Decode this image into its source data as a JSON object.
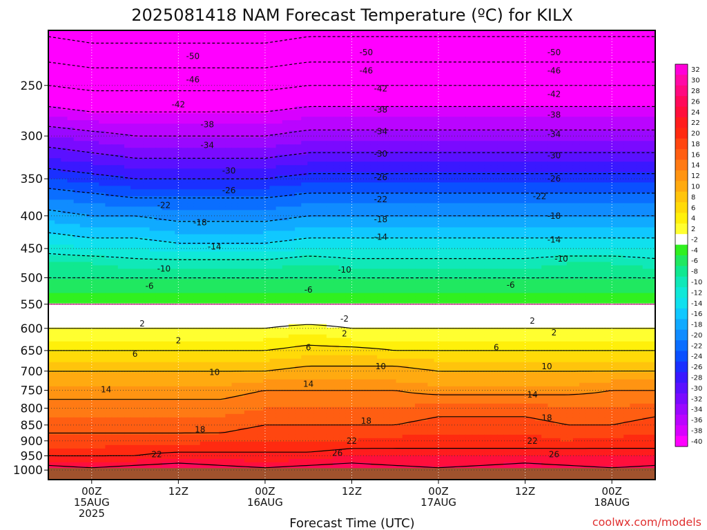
{
  "chart_data": {
    "type": "heatmap",
    "title": "2025081418 NAM Forecast Temperature (ºC) for KILX",
    "xlabel": "Forecast Time (UTC)",
    "credit": "coolwx.com/models",
    "y_axis": {
      "quantity": "pressure (hPa)",
      "reversed": true,
      "log_scale": true,
      "ticks": [
        250,
        300,
        350,
        400,
        450,
        500,
        550,
        600,
        650,
        700,
        750,
        800,
        850,
        900,
        950,
        1000
      ],
      "range": [
        1035,
        205
      ]
    },
    "x_axis": {
      "range_hours_after_2025081418": [
        0,
        84
      ],
      "ticks": [
        {
          "hour": 6,
          "lines": [
            "00Z",
            "15AUG",
            "2025"
          ]
        },
        {
          "hour": 18,
          "lines": [
            "12Z"
          ]
        },
        {
          "hour": 30,
          "lines": [
            "00Z",
            "16AUG"
          ]
        },
        {
          "hour": 42,
          "lines": [
            "12Z"
          ]
        },
        {
          "hour": 54,
          "lines": [
            "00Z",
            "17AUG"
          ]
        },
        {
          "hour": 66,
          "lines": [
            "12Z"
          ]
        },
        {
          "hour": 78,
          "lines": [
            "00Z",
            "18AUG"
          ]
        }
      ]
    },
    "grid": true,
    "ground_level_hPa": 993,
    "colorbar": {
      "location": "right",
      "levels": [
        32,
        30,
        28,
        26,
        24,
        22,
        20,
        18,
        16,
        14,
        12,
        10,
        8,
        6,
        4,
        2,
        -2,
        -4,
        -6,
        -8,
        -10,
        -12,
        -14,
        -16,
        -18,
        -20,
        -22,
        -24,
        -26,
        -28,
        -30,
        -32,
        -34,
        -36,
        -38,
        -40
      ],
      "colors": [
        "#ff00d8",
        "#ff0aa6",
        "#ff0a80",
        "#ff0a5a",
        "#ff0f3c",
        "#ff1d1d",
        "#ff2a10",
        "#ff4610",
        "#ff5e12",
        "#ff7a14",
        "#ff9412",
        "#ffaa10",
        "#ffc40c",
        "#ffda08",
        "#fff00a",
        "#ffff30",
        "#ffffff",
        "#30f020",
        "#20e860",
        "#10e890",
        "#10e8b8",
        "#10e8d8",
        "#10e0ee",
        "#10c8ff",
        "#10aaff",
        "#108cff",
        "#0a6eff",
        "#0a50ff",
        "#1a30ff",
        "#3a18ff",
        "#5a10ff",
        "#7a0aff",
        "#9a08ff",
        "#ba04ff",
        "#d800ff",
        "#ff00ff"
      ]
    },
    "profile_hPa": [
      1000,
      975,
      950,
      925,
      900,
      875,
      850,
      825,
      800,
      775,
      750,
      725,
      700,
      675,
      650,
      625,
      600,
      575,
      550,
      525,
      500,
      475,
      450,
      425,
      400,
      375,
      350,
      325,
      300,
      275,
      250,
      225,
      200
    ],
    "columns_hour": [
      0,
      6,
      12,
      18,
      24,
      30,
      36,
      42,
      48,
      54,
      60,
      66,
      72,
      78,
      84
    ],
    "temperature_C": [
      [
        28,
        27,
        28,
        29,
        28,
        27,
        28,
        29,
        28,
        27,
        28,
        29,
        28,
        27,
        28
      ],
      [
        25,
        24,
        25,
        26,
        25,
        24,
        25,
        26,
        25,
        24,
        25,
        26,
        25,
        24,
        25
      ],
      [
        22,
        22,
        22,
        23,
        23,
        23,
        23,
        24,
        24,
        24,
        24,
        24,
        24,
        24,
        24
      ],
      [
        20,
        20,
        21,
        21,
        21,
        21,
        21,
        22,
        22,
        22,
        22,
        22,
        22,
        22,
        22
      ],
      [
        19,
        19,
        19,
        19,
        20,
        20,
        20,
        20,
        21,
        21,
        21,
        21,
        20,
        21,
        21
      ],
      [
        18,
        18,
        18,
        18,
        18,
        19,
        19,
        19,
        19,
        20,
        20,
        20,
        19,
        19,
        20
      ],
      [
        17,
        17,
        17,
        17,
        17,
        18,
        18,
        18,
        18,
        19,
        19,
        19,
        18,
        18,
        19
      ],
      [
        16,
        16,
        16,
        16,
        16,
        17,
        17,
        17,
        17,
        18,
        18,
        18,
        17,
        17,
        18
      ],
      [
        15,
        15,
        15,
        15,
        15,
        16,
        16,
        16,
        16,
        17,
        17,
        17,
        16,
        16,
        17
      ],
      [
        14,
        14,
        14,
        14,
        14,
        15,
        15,
        15,
        15,
        15,
        15,
        15,
        15,
        15,
        15
      ],
      [
        13,
        13,
        13,
        13,
        13,
        14,
        14,
        14,
        14,
        13,
        13,
        13,
        13,
        14,
        14
      ],
      [
        11,
        11,
        11,
        11,
        11,
        12,
        12,
        12,
        12,
        11,
        11,
        11,
        11,
        12,
        12
      ],
      [
        10,
        10,
        10,
        10,
        10,
        10,
        11,
        11,
        11,
        10,
        10,
        10,
        10,
        10,
        10
      ],
      [
        8,
        8,
        8,
        8,
        8,
        8,
        9,
        9,
        9,
        8,
        8,
        8,
        8,
        8,
        8
      ],
      [
        6,
        6,
        6,
        6,
        6,
        6,
        7,
        7,
        6,
        6,
        6,
        6,
        6,
        6,
        6
      ],
      [
        4,
        4,
        4,
        4,
        4,
        4,
        5,
        4,
        4,
        4,
        4,
        4,
        4,
        4,
        4
      ],
      [
        2,
        2,
        2,
        2,
        2,
        2,
        3,
        2,
        2,
        2,
        2,
        2,
        2,
        2,
        2
      ],
      [
        0,
        0,
        0,
        0,
        0,
        0,
        0,
        0,
        0,
        0,
        0,
        0,
        0,
        0,
        0
      ],
      [
        -2,
        -2,
        -2,
        -2,
        -2,
        -2,
        -2,
        -2,
        -2,
        -2,
        -2,
        -2,
        -2,
        -2,
        -2
      ],
      [
        -4,
        -4,
        -4,
        -4,
        -4,
        -4,
        -4,
        -4,
        -4,
        -4,
        -4,
        -4,
        -4,
        -4,
        -4
      ],
      [
        -6,
        -6,
        -6,
        -6,
        -6,
        -6,
        -6,
        -6,
        -6,
        -6,
        -6,
        -6,
        -6,
        -6,
        -6
      ],
      [
        -8,
        -8,
        -9,
        -9,
        -9,
        -9,
        -8,
        -9,
        -9,
        -9,
        -9,
        -9,
        -8,
        -8,
        -9
      ],
      [
        -11,
        -12,
        -12,
        -13,
        -13,
        -13,
        -12,
        -12,
        -12,
        -12,
        -12,
        -12,
        -12,
        -12,
        -12
      ],
      [
        -14,
        -15,
        -15,
        -16,
        -16,
        -16,
        -15,
        -15,
        -15,
        -15,
        -15,
        -15,
        -15,
        -15,
        -15
      ],
      [
        -17,
        -18,
        -18,
        -19,
        -19,
        -19,
        -18,
        -18,
        -18,
        -18,
        -18,
        -18,
        -18,
        -18,
        -18
      ],
      [
        -20,
        -21,
        -22,
        -22,
        -22,
        -22,
        -21,
        -21,
        -21,
        -21,
        -21,
        -21,
        -21,
        -21,
        -21
      ],
      [
        -24,
        -25,
        -26,
        -26,
        -26,
        -26,
        -25,
        -25,
        -25,
        -25,
        -25,
        -25,
        -25,
        -25,
        -25
      ],
      [
        -28,
        -29,
        -30,
        -30,
        -30,
        -30,
        -29,
        -29,
        -29,
        -29,
        -29,
        -29,
        -29,
        -29,
        -29
      ],
      [
        -32,
        -33,
        -34,
        -34,
        -34,
        -34,
        -33,
        -33,
        -33,
        -33,
        -33,
        -33,
        -33,
        -33,
        -33
      ],
      [
        -37,
        -38,
        -38,
        -38,
        -38,
        -38,
        -37,
        -37,
        -37,
        -37,
        -37,
        -37,
        -37,
        -37,
        -37
      ],
      [
        -42,
        -43,
        -43,
        -43,
        -43,
        -43,
        -42,
        -42,
        -42,
        -42,
        -42,
        -42,
        -42,
        -42,
        -42
      ],
      [
        -47,
        -48,
        -48,
        -48,
        -48,
        -48,
        -47,
        -47,
        -47,
        -47,
        -47,
        -47,
        -47,
        -47,
        -47
      ],
      [
        -52,
        -53,
        -53,
        -53,
        -53,
        -53,
        -52,
        -52,
        -52,
        -52,
        -52,
        -52,
        -52,
        -52,
        -52
      ]
    ],
    "contour_labels": [
      {
        "text": "-50",
        "hour": 20,
        "hPa": 225
      },
      {
        "text": "-50",
        "hour": 44,
        "hPa": 222
      },
      {
        "text": "-50",
        "hour": 70,
        "hPa": 222
      },
      {
        "text": "-46",
        "hour": 20,
        "hPa": 245
      },
      {
        "text": "-46",
        "hour": 44,
        "hPa": 237
      },
      {
        "text": "-46",
        "hour": 70,
        "hPa": 237
      },
      {
        "text": "-42",
        "hour": 18,
        "hPa": 268
      },
      {
        "text": "-42",
        "hour": 46,
        "hPa": 253
      },
      {
        "text": "-42",
        "hour": 70,
        "hPa": 258
      },
      {
        "text": "-38",
        "hour": 22,
        "hPa": 288
      },
      {
        "text": "-38",
        "hour": 46,
        "hPa": 273
      },
      {
        "text": "-38",
        "hour": 70,
        "hPa": 278
      },
      {
        "text": "-34",
        "hour": 22,
        "hPa": 310
      },
      {
        "text": "-34",
        "hour": 46,
        "hPa": 295
      },
      {
        "text": "-34",
        "hour": 70,
        "hPa": 298
      },
      {
        "text": "-30",
        "hour": 25,
        "hPa": 340
      },
      {
        "text": "-30",
        "hour": 46,
        "hPa": 320
      },
      {
        "text": "-30",
        "hour": 70,
        "hPa": 322
      },
      {
        "text": "-26",
        "hour": 25,
        "hPa": 365
      },
      {
        "text": "-26",
        "hour": 46,
        "hPa": 348
      },
      {
        "text": "-26",
        "hour": 70,
        "hPa": 350
      },
      {
        "text": "-22",
        "hour": 16,
        "hPa": 385
      },
      {
        "text": "-22",
        "hour": 46,
        "hPa": 377
      },
      {
        "text": "-22",
        "hour": 68,
        "hPa": 373
      },
      {
        "text": "-18",
        "hour": 21,
        "hPa": 410
      },
      {
        "text": "-18",
        "hour": 46,
        "hPa": 405
      },
      {
        "text": "-18",
        "hour": 70,
        "hPa": 400
      },
      {
        "text": "-14",
        "hour": 23,
        "hPa": 447
      },
      {
        "text": "-14",
        "hour": 46,
        "hPa": 432
      },
      {
        "text": "-14",
        "hour": 70,
        "hPa": 436
      },
      {
        "text": "-10",
        "hour": 16,
        "hPa": 484
      },
      {
        "text": "-10",
        "hour": 41,
        "hPa": 486
      },
      {
        "text": "-10",
        "hour": 71,
        "hPa": 467
      },
      {
        "text": "-6",
        "hour": 14,
        "hPa": 515
      },
      {
        "text": "-6",
        "hour": 36,
        "hPa": 522
      },
      {
        "text": "-6",
        "hour": 64,
        "hPa": 513
      },
      {
        "text": "-2",
        "hour": 41,
        "hPa": 580
      },
      {
        "text": "2",
        "hour": 13,
        "hPa": 590
      },
      {
        "text": "2",
        "hour": 67,
        "hPa": 584
      },
      {
        "text": "2",
        "hour": 18,
        "hPa": 627
      },
      {
        "text": "2",
        "hour": 41,
        "hPa": 612
      },
      {
        "text": "2",
        "hour": 70,
        "hPa": 609
      },
      {
        "text": "6",
        "hour": 12,
        "hPa": 658
      },
      {
        "text": "6",
        "hour": 36,
        "hPa": 643
      },
      {
        "text": "6",
        "hour": 62,
        "hPa": 643
      },
      {
        "text": "10",
        "hour": 23,
        "hPa": 703
      },
      {
        "text": "10",
        "hour": 46,
        "hPa": 688
      },
      {
        "text": "10",
        "hour": 69,
        "hPa": 688
      },
      {
        "text": "14",
        "hour": 8,
        "hPa": 748
      },
      {
        "text": "14",
        "hour": 36,
        "hPa": 733
      },
      {
        "text": "14",
        "hour": 67,
        "hPa": 762
      },
      {
        "text": "18",
        "hour": 21,
        "hPa": 864
      },
      {
        "text": "18",
        "hour": 44,
        "hPa": 838
      },
      {
        "text": "18",
        "hour": 69,
        "hPa": 828
      },
      {
        "text": "22",
        "hour": 15,
        "hPa": 945
      },
      {
        "text": "22",
        "hour": 42,
        "hPa": 900
      },
      {
        "text": "22",
        "hour": 67,
        "hPa": 900
      },
      {
        "text": "26",
        "hour": 40,
        "hPa": 940
      },
      {
        "text": "26",
        "hour": 70,
        "hPa": 945
      }
    ]
  }
}
